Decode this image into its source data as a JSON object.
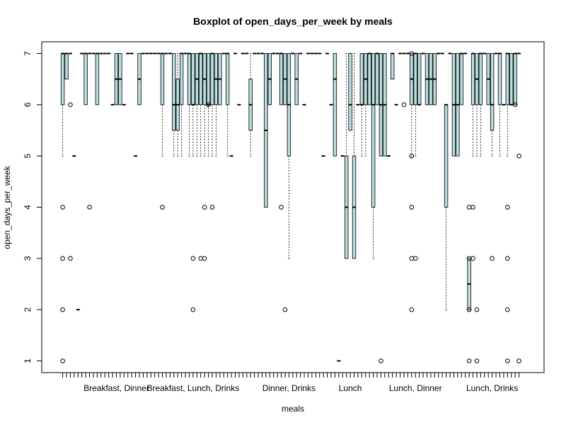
{
  "chart_data": {
    "type": "boxplot",
    "title": "Boxplot of open_days_per_week by meals",
    "xlabel": "meals",
    "ylabel": "open_days_per_week",
    "ylim": [
      0.8,
      7.2
    ],
    "yticks": [
      1,
      2,
      3,
      4,
      5,
      6,
      7
    ],
    "box_color": "#b9dcde",
    "group_count": 120,
    "category_labels": [
      {
        "label": "Breakfast, Dinner",
        "index": 15
      },
      {
        "label": "Breakfast, Lunch, Drinks",
        "index": 35
      },
      {
        "label": "Dinner, Drinks",
        "index": 60
      },
      {
        "label": "Lunch",
        "index": 76
      },
      {
        "label": "Lunch, Dinner",
        "index": 93
      },
      {
        "label": "Lunch, Drinks",
        "index": 113
      }
    ],
    "boxes": [
      {
        "i": 1,
        "q1": 6,
        "med": 7,
        "q3": 7,
        "lw": 5,
        "uw": 7,
        "out": [
          1,
          2,
          3,
          4
        ]
      },
      {
        "i": 2,
        "q1": 6.5,
        "med": 7,
        "q3": 7,
        "lw": 6.5,
        "uw": 7,
        "out": []
      },
      {
        "i": 3,
        "q1": 7,
        "med": 7,
        "q3": 7,
        "lw": 7,
        "uw": 7,
        "out": [
          6,
          3
        ]
      },
      {
        "i": 4,
        "q1": 5,
        "med": 5,
        "q3": 5,
        "lw": 5,
        "uw": 5,
        "out": []
      },
      {
        "i": 5,
        "q1": 2,
        "med": 2,
        "q3": 2,
        "lw": 2,
        "uw": 2,
        "out": []
      },
      {
        "i": 6,
        "q1": 7,
        "med": 7,
        "q3": 7,
        "lw": 7,
        "uw": 7,
        "out": []
      },
      {
        "i": 7,
        "q1": 6,
        "med": 7,
        "q3": 7,
        "lw": 6,
        "uw": 7,
        "out": []
      },
      {
        "i": 8,
        "q1": 7,
        "med": 7,
        "q3": 7,
        "lw": 7,
        "uw": 7,
        "out": [
          4
        ]
      },
      {
        "i": 9,
        "q1": 7,
        "med": 7,
        "q3": 7,
        "lw": 7,
        "uw": 7,
        "out": []
      },
      {
        "i": 10,
        "q1": 6,
        "med": 7,
        "q3": 7,
        "lw": 6,
        "uw": 7,
        "out": []
      },
      {
        "i": 11,
        "q1": 7,
        "med": 7,
        "q3": 7,
        "lw": 7,
        "uw": 7,
        "out": []
      },
      {
        "i": 12,
        "q1": 7,
        "med": 7,
        "q3": 7,
        "lw": 7,
        "uw": 7,
        "out": []
      },
      {
        "i": 13,
        "q1": 7,
        "med": 7,
        "q3": 7,
        "lw": 7,
        "uw": 7,
        "out": []
      },
      {
        "i": 14,
        "q1": 6,
        "med": 6,
        "q3": 6,
        "lw": 6,
        "uw": 6,
        "out": []
      },
      {
        "i": 15,
        "q1": 6,
        "med": 6.5,
        "q3": 7,
        "lw": 6,
        "uw": 7,
        "out": []
      },
      {
        "i": 16,
        "q1": 6,
        "med": 6.5,
        "q3": 7,
        "lw": 6,
        "uw": 7,
        "out": []
      },
      {
        "i": 17,
        "q1": 6,
        "med": 6,
        "q3": 6,
        "lw": 6,
        "uw": 6,
        "out": []
      },
      {
        "i": 18,
        "q1": 7,
        "med": 7,
        "q3": 7,
        "lw": 7,
        "uw": 7,
        "out": []
      },
      {
        "i": 19,
        "q1": 7,
        "med": 7,
        "q3": 7,
        "lw": 7,
        "uw": 7,
        "out": []
      },
      {
        "i": 20,
        "q1": 5,
        "med": 5,
        "q3": 5,
        "lw": 5,
        "uw": 5,
        "out": []
      },
      {
        "i": 21,
        "q1": 6,
        "med": 6.5,
        "q3": 7,
        "lw": 6,
        "uw": 7,
        "out": []
      },
      {
        "i": 22,
        "q1": 7,
        "med": 7,
        "q3": 7,
        "lw": 7,
        "uw": 7,
        "out": []
      },
      {
        "i": 23,
        "q1": 7,
        "med": 7,
        "q3": 7,
        "lw": 7,
        "uw": 7,
        "out": []
      },
      {
        "i": 24,
        "q1": 7,
        "med": 7,
        "q3": 7,
        "lw": 7,
        "uw": 7,
        "out": []
      },
      {
        "i": 25,
        "q1": 7,
        "med": 7,
        "q3": 7,
        "lw": 7,
        "uw": 7,
        "out": []
      },
      {
        "i": 26,
        "q1": 7,
        "med": 7,
        "q3": 7,
        "lw": 7,
        "uw": 7,
        "out": []
      },
      {
        "i": 27,
        "q1": 6,
        "med": 7,
        "q3": 7,
        "lw": 5,
        "uw": 7,
        "out": [
          4
        ]
      },
      {
        "i": 28,
        "q1": 7,
        "med": 7,
        "q3": 7,
        "lw": 7,
        "uw": 7,
        "out": []
      },
      {
        "i": 29,
        "q1": 7,
        "med": 7,
        "q3": 7,
        "lw": 7,
        "uw": 7,
        "out": []
      },
      {
        "i": 30,
        "q1": 5.5,
        "med": 6,
        "q3": 7,
        "lw": 5,
        "uw": 7,
        "out": []
      },
      {
        "i": 31,
        "q1": 5.5,
        "med": 6,
        "q3": 6.5,
        "lw": 5,
        "uw": 7,
        "out": []
      },
      {
        "i": 32,
        "q1": 6,
        "med": 7,
        "q3": 7,
        "lw": 5,
        "uw": 7,
        "out": []
      },
      {
        "i": 33,
        "q1": 7,
        "med": 7,
        "q3": 7,
        "lw": 7,
        "uw": 7,
        "out": []
      },
      {
        "i": 34,
        "q1": 6,
        "med": 7,
        "q3": 7,
        "lw": 5,
        "uw": 7,
        "out": []
      },
      {
        "i": 35,
        "q1": 6,
        "med": 6,
        "q3": 7,
        "lw": 5,
        "uw": 7,
        "out": [
          3,
          2
        ]
      },
      {
        "i": 36,
        "q1": 6,
        "med": 6.5,
        "q3": 7,
        "lw": 5,
        "uw": 7,
        "out": []
      },
      {
        "i": 37,
        "q1": 6,
        "med": 7,
        "q3": 7,
        "lw": 5,
        "uw": 7,
        "out": [
          3
        ]
      },
      {
        "i": 38,
        "q1": 6,
        "med": 6.5,
        "q3": 7,
        "lw": 5,
        "uw": 7,
        "out": [
          3,
          4
        ]
      },
      {
        "i": 39,
        "q1": 6,
        "med": 6,
        "q3": 7,
        "lw": 5,
        "uw": 7,
        "out": [
          6
        ]
      },
      {
        "i": 40,
        "q1": 6,
        "med": 7,
        "q3": 7,
        "lw": 5,
        "uw": 7,
        "out": [
          4
        ]
      },
      {
        "i": 41,
        "q1": 6,
        "med": 6.5,
        "q3": 7,
        "lw": 5,
        "uw": 7,
        "out": []
      },
      {
        "i": 42,
        "q1": 6,
        "med": 6.5,
        "q3": 7,
        "lw": 6,
        "uw": 7,
        "out": []
      },
      {
        "i": 43,
        "q1": 7,
        "med": 7,
        "q3": 7,
        "lw": 7,
        "uw": 7,
        "out": []
      },
      {
        "i": 44,
        "q1": 6,
        "med": 7,
        "q3": 7,
        "lw": 5,
        "uw": 7,
        "out": []
      },
      {
        "i": 45,
        "q1": 5,
        "med": 5,
        "q3": 5,
        "lw": 5,
        "uw": 5,
        "out": []
      },
      {
        "i": 46,
        "q1": 7,
        "med": 7,
        "q3": 7,
        "lw": 7,
        "uw": 7,
        "out": []
      },
      {
        "i": 47,
        "q1": 6,
        "med": 6,
        "q3": 6,
        "lw": 6,
        "uw": 6,
        "out": []
      },
      {
        "i": 48,
        "q1": 7,
        "med": 7,
        "q3": 7,
        "lw": 7,
        "uw": 7,
        "out": []
      },
      {
        "i": 49,
        "q1": 7,
        "med": 7,
        "q3": 7,
        "lw": 7,
        "uw": 7,
        "out": []
      },
      {
        "i": 50,
        "q1": 5.5,
        "med": 6,
        "q3": 6.5,
        "lw": 5,
        "uw": 7,
        "out": []
      },
      {
        "i": 51,
        "q1": 7,
        "med": 7,
        "q3": 7,
        "lw": 7,
        "uw": 7,
        "out": []
      },
      {
        "i": 52,
        "q1": 7,
        "med": 7,
        "q3": 7,
        "lw": 7,
        "uw": 7,
        "out": []
      },
      {
        "i": 53,
        "q1": 7,
        "med": 7,
        "q3": 7,
        "lw": 7,
        "uw": 7,
        "out": []
      },
      {
        "i": 54,
        "q1": 4,
        "med": 5.5,
        "q3": 7,
        "lw": 4,
        "uw": 7,
        "out": []
      },
      {
        "i": 55,
        "q1": 6,
        "med": 6.5,
        "q3": 7,
        "lw": 6,
        "uw": 7,
        "out": []
      },
      {
        "i": 56,
        "q1": 7,
        "med": 7,
        "q3": 7,
        "lw": 7,
        "uw": 7,
        "out": []
      },
      {
        "i": 57,
        "q1": 7,
        "med": 7,
        "q3": 7,
        "lw": 7,
        "uw": 7,
        "out": []
      },
      {
        "i": 58,
        "q1": 6,
        "med": 7,
        "q3": 7,
        "lw": 6,
        "uw": 7,
        "out": [
          4
        ]
      },
      {
        "i": 59,
        "q1": 6,
        "med": 6.5,
        "q3": 7,
        "lw": 6,
        "uw": 7,
        "out": [
          2
        ]
      },
      {
        "i": 60,
        "q1": 5,
        "med": 6,
        "q3": 7,
        "lw": 3,
        "uw": 7,
        "out": []
      },
      {
        "i": 61,
        "q1": 7,
        "med": 7,
        "q3": 7,
        "lw": 7,
        "uw": 7,
        "out": []
      },
      {
        "i": 62,
        "q1": 6,
        "med": 6.5,
        "q3": 7,
        "lw": 6,
        "uw": 7,
        "out": []
      },
      {
        "i": 63,
        "q1": 7,
        "med": 7,
        "q3": 7,
        "lw": 7,
        "uw": 7,
        "out": []
      },
      {
        "i": 64,
        "q1": 6,
        "med": 6,
        "q3": 6,
        "lw": 6,
        "uw": 6,
        "out": []
      },
      {
        "i": 65,
        "q1": 7,
        "med": 7,
        "q3": 7,
        "lw": 7,
        "uw": 7,
        "out": []
      },
      {
        "i": 66,
        "q1": 7,
        "med": 7,
        "q3": 7,
        "lw": 7,
        "uw": 7,
        "out": []
      },
      {
        "i": 67,
        "q1": 7,
        "med": 7,
        "q3": 7,
        "lw": 7,
        "uw": 7,
        "out": []
      },
      {
        "i": 68,
        "q1": 7,
        "med": 7,
        "q3": 7,
        "lw": 7,
        "uw": 7,
        "out": []
      },
      {
        "i": 69,
        "q1": 5,
        "med": 5,
        "q3": 5,
        "lw": 5,
        "uw": 5,
        "out": []
      },
      {
        "i": 70,
        "q1": 7,
        "med": 7,
        "q3": 7,
        "lw": 7,
        "uw": 7,
        "out": []
      },
      {
        "i": 71,
        "q1": 6,
        "med": 6,
        "q3": 6,
        "lw": 6,
        "uw": 6,
        "out": []
      },
      {
        "i": 72,
        "q1": 5,
        "med": 6.5,
        "q3": 7,
        "lw": 5,
        "uw": 7,
        "out": []
      },
      {
        "i": 73,
        "q1": 1,
        "med": 1,
        "q3": 1,
        "lw": 1,
        "uw": 1,
        "out": []
      },
      {
        "i": 74,
        "q1": 5,
        "med": 5,
        "q3": 5,
        "lw": 5,
        "uw": 5,
        "out": []
      },
      {
        "i": 75,
        "q1": 3,
        "med": 4,
        "q3": 5,
        "lw": 3,
        "uw": 7,
        "out": []
      },
      {
        "i": 76,
        "q1": 5.5,
        "med": 6,
        "q3": 7,
        "lw": 5.5,
        "uw": 7,
        "out": []
      },
      {
        "i": 77,
        "q1": 3,
        "med": 4,
        "q3": 5,
        "lw": 3,
        "uw": 7,
        "out": []
      },
      {
        "i": 78,
        "q1": 6,
        "med": 6,
        "q3": 6,
        "lw": 6,
        "uw": 6,
        "out": []
      },
      {
        "i": 79,
        "q1": 6,
        "med": 6,
        "q3": 7,
        "lw": 5,
        "uw": 7,
        "out": []
      },
      {
        "i": 80,
        "q1": 6,
        "med": 6.5,
        "q3": 7,
        "lw": 5,
        "uw": 7,
        "out": []
      },
      {
        "i": 81,
        "q1": 6,
        "med": 7,
        "q3": 7,
        "lw": 6,
        "uw": 7,
        "out": []
      },
      {
        "i": 82,
        "q1": 4,
        "med": 6,
        "q3": 7,
        "lw": 3,
        "uw": 7,
        "out": []
      },
      {
        "i": 83,
        "q1": 6,
        "med": 7,
        "q3": 7,
        "lw": 6,
        "uw": 7,
        "out": []
      },
      {
        "i": 84,
        "q1": 5,
        "med": 6,
        "q3": 7,
        "lw": 5,
        "uw": 7,
        "out": [
          1
        ]
      },
      {
        "i": 85,
        "q1": 5,
        "med": 6,
        "q3": 7,
        "lw": 5,
        "uw": 7,
        "out": []
      },
      {
        "i": 86,
        "q1": 5,
        "med": 5,
        "q3": 5,
        "lw": 5,
        "uw": 5,
        "out": []
      },
      {
        "i": 87,
        "q1": 6.5,
        "med": 7,
        "q3": 7,
        "lw": 6.5,
        "uw": 7,
        "out": []
      },
      {
        "i": 88,
        "q1": 6,
        "med": 6,
        "q3": 6,
        "lw": 6,
        "uw": 6,
        "out": []
      },
      {
        "i": 89,
        "q1": 7,
        "med": 7,
        "q3": 7,
        "lw": 7,
        "uw": 7,
        "out": []
      },
      {
        "i": 90,
        "q1": 7,
        "med": 7,
        "q3": 7,
        "lw": 7,
        "uw": 7,
        "out": [
          6
        ]
      },
      {
        "i": 91,
        "q1": 7,
        "med": 7,
        "q3": 7,
        "lw": 7,
        "uw": 7,
        "out": []
      },
      {
        "i": 92,
        "q1": 6,
        "med": 6.5,
        "q3": 7,
        "lw": 5,
        "uw": 7,
        "out": [
          2,
          3,
          4,
          5,
          7
        ]
      },
      {
        "i": 93,
        "q1": 6,
        "med": 7,
        "q3": 7,
        "lw": 5,
        "uw": 7,
        "out": [
          3
        ]
      },
      {
        "i": 94,
        "q1": 6,
        "med": 6,
        "q3": 7,
        "lw": 6,
        "uw": 7,
        "out": []
      },
      {
        "i": 95,
        "q1": 7,
        "med": 7,
        "q3": 7,
        "lw": 7,
        "uw": 7,
        "out": []
      },
      {
        "i": 96,
        "q1": 6,
        "med": 6.5,
        "q3": 7,
        "lw": 6,
        "uw": 7,
        "out": []
      },
      {
        "i": 97,
        "q1": 6,
        "med": 6.5,
        "q3": 7,
        "lw": 6,
        "uw": 7,
        "out": []
      },
      {
        "i": 98,
        "q1": 6,
        "med": 6.5,
        "q3": 7,
        "lw": 6,
        "uw": 7,
        "out": []
      },
      {
        "i": 99,
        "q1": 7,
        "med": 7,
        "q3": 7,
        "lw": 7,
        "uw": 7,
        "out": []
      },
      {
        "i": 100,
        "q1": 7,
        "med": 7,
        "q3": 7,
        "lw": 7,
        "uw": 7,
        "out": []
      },
      {
        "i": 101,
        "q1": 4,
        "med": 6,
        "q3": 6,
        "lw": 2,
        "uw": 6,
        "out": []
      },
      {
        "i": 102,
        "q1": 7,
        "med": 7,
        "q3": 7,
        "lw": 7,
        "uw": 7,
        "out": []
      },
      {
        "i": 103,
        "q1": 5,
        "med": 6,
        "q3": 7,
        "lw": 5,
        "uw": 7,
        "out": []
      },
      {
        "i": 104,
        "q1": 5,
        "med": 6,
        "q3": 7,
        "lw": 5,
        "uw": 7,
        "out": []
      },
      {
        "i": 105,
        "q1": 6,
        "med": 7,
        "q3": 7,
        "lw": 6,
        "uw": 7,
        "out": []
      },
      {
        "i": 106,
        "q1": 7,
        "med": 7,
        "q3": 7,
        "lw": 7,
        "uw": 7,
        "out": []
      },
      {
        "i": 107,
        "q1": 2,
        "med": 2.5,
        "q3": 3,
        "lw": 2,
        "uw": 3,
        "out": [
          1,
          2,
          3,
          4
        ]
      },
      {
        "i": 108,
        "q1": 6,
        "med": 7,
        "q3": 7,
        "lw": 5,
        "uw": 7,
        "out": [
          4,
          3
        ]
      },
      {
        "i": 109,
        "q1": 6,
        "med": 6.5,
        "q3": 7,
        "lw": 5,
        "uw": 7,
        "out": [
          2,
          1
        ]
      },
      {
        "i": 110,
        "q1": 6,
        "med": 7,
        "q3": 7,
        "lw": 5,
        "uw": 7,
        "out": []
      },
      {
        "i": 111,
        "q1": 7,
        "med": 7,
        "q3": 7,
        "lw": 7,
        "uw": 7,
        "out": []
      },
      {
        "i": 112,
        "q1": 6,
        "med": 6.5,
        "q3": 7,
        "lw": 6,
        "uw": 7,
        "out": []
      },
      {
        "i": 113,
        "q1": 5.5,
        "med": 6,
        "q3": 7,
        "lw": 5,
        "uw": 7,
        "out": [
          3
        ]
      },
      {
        "i": 114,
        "q1": 7,
        "med": 7,
        "q3": 7,
        "lw": 7,
        "uw": 7,
        "out": []
      },
      {
        "i": 115,
        "q1": 6,
        "med": 7,
        "q3": 7,
        "lw": 5,
        "uw": 7,
        "out": []
      },
      {
        "i": 116,
        "q1": 6,
        "med": 6,
        "q3": 6,
        "lw": 6,
        "uw": 6,
        "out": []
      },
      {
        "i": 117,
        "q1": 6,
        "med": 7,
        "q3": 7,
        "lw": 5,
        "uw": 7,
        "out": [
          4,
          3,
          2,
          1
        ]
      },
      {
        "i": 118,
        "q1": 6,
        "med": 6,
        "q3": 7,
        "lw": 6,
        "uw": 7,
        "out": []
      },
      {
        "i": 119,
        "q1": 6,
        "med": 7,
        "q3": 7,
        "lw": 6,
        "uw": 7,
        "out": [
          6
        ]
      },
      {
        "i": 120,
        "q1": 7,
        "med": 7,
        "q3": 7,
        "lw": 7,
        "uw": 7,
        "out": [
          5,
          1
        ]
      }
    ]
  }
}
